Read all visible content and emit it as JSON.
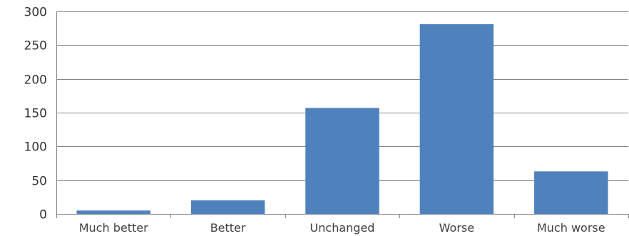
{
  "chart_data": {
    "type": "bar",
    "categories": [
      "Much better",
      "Better",
      "Unchanged",
      "Worse",
      "Much worse"
    ],
    "values": [
      5,
      20,
      157,
      281,
      63
    ],
    "ylim": [
      0,
      300
    ],
    "yticks": [
      0,
      50,
      100,
      150,
      200,
      250,
      300
    ],
    "grid": true,
    "legend": "none",
    "colors": {
      "bar": "#4f81bd",
      "grid": "#868686",
      "axis": "#868686"
    }
  }
}
